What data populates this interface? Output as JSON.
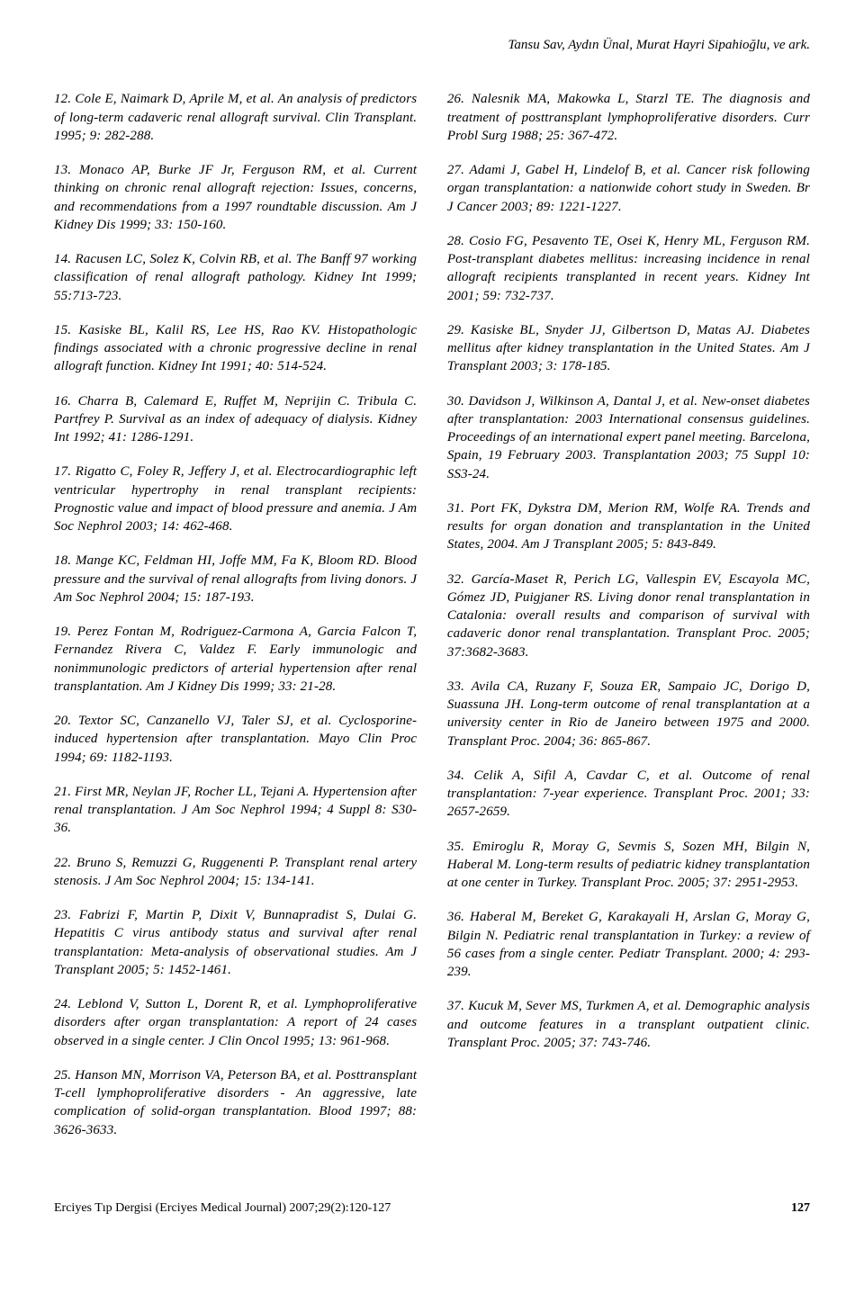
{
  "header": {
    "authors": "Tansu Sav, Aydın Ünal, Murat Hayri Sipahioğlu, ve ark."
  },
  "left_refs": [
    "12. Cole E, Naimark D, Aprile M, et al. An analysis of predictors of long-term cadaveric renal allograft survival. Clin Transplant. 1995; 9: 282-288.",
    "13. Monaco AP, Burke JF Jr, Ferguson RM, et al. Current thinking on chronic renal allograft rejection: Issues, concerns, and recommendations from a 1997 roundtable discussion. Am J Kidney Dis 1999; 33: 150-160.",
    "14. Racusen LC, Solez K, Colvin RB, et al. The Banff 97 working classification of renal allograft pathology. Kidney Int 1999; 55:713-723.",
    "15. Kasiske BL, Kalil RS, Lee HS, Rao KV. Histopathologic findings associated with a chronic progressive decline in renal allograft function. Kidney Int 1991; 40: 514-524.",
    "16. Charra B, Calemard E, Ruffet M, Neprijin C. Tribula C. Partfrey P. Survival as an index of adequacy of dialysis. Kidney Int 1992; 41: 1286-1291.",
    "17. Rigatto C, Foley R, Jeffery J, et al. Electrocardiographic left ventricular hypertrophy in renal transplant recipients: Prognostic value and impact of blood pressure and anemia. J Am Soc Nephrol 2003; 14: 462-468.",
    "18. Mange KC, Feldman HI, Joffe MM, Fa K, Bloom RD. Blood pressure and the survival of renal allografts from living donors. J Am Soc Nephrol 2004; 15: 187-193.",
    "19. Perez Fontan M, Rodriguez-Carmona A, Garcia Falcon T, Fernandez Rivera C, Valdez F. Early immunologic and nonimmunologic predictors of arterial hypertension after renal transplantation. Am J Kidney Dis 1999; 33: 21-28.",
    "20. Textor SC, Canzanello VJ, Taler SJ, et al. Cyclosporine-induced hypertension after transplantation. Mayo Clin Proc 1994; 69: 1182-1193.",
    "21. First MR, Neylan JF, Rocher LL, Tejani A. Hypertension after renal transplantation. J Am Soc Nephrol 1994; 4 Suppl 8: S30-36.",
    "22. Bruno S, Remuzzi G, Ruggenenti P. Transplant renal artery stenosis. J Am Soc Nephrol 2004; 15: 134-141.",
    "23. Fabrizi F, Martin P, Dixit V, Bunnapradist S, Dulai G. Hepatitis C virus antibody status and survival after renal transplantation: Meta-analysis of observational studies. Am J Transplant 2005; 5: 1452-1461.",
    "24. Leblond V, Sutton L, Dorent R, et al. Lymphoproliferative disorders after organ transplantation: A report of 24 cases observed in a single center. J Clin Oncol 1995; 13: 961-968.",
    "25. Hanson MN, Morrison VA, Peterson BA, et al. Posttransplant T-cell lymphoproliferative disorders - An aggressive, late complication of solid-organ transplantation. Blood 1997; 88: 3626-3633."
  ],
  "right_refs": [
    "26. Nalesnik MA, Makowka L, Starzl TE. The diagnosis and treatment of posttransplant lymphoproliferative disorders. Curr Probl Surg 1988; 25: 367-472.",
    "27. Adami J, Gabel H, Lindelof B, et al. Cancer risk following organ transplantation: a nationwide cohort study in Sweden. Br J Cancer 2003; 89: 1221-1227.",
    "28. Cosio FG, Pesavento TE, Osei K, Henry ML, Ferguson RM. Post-transplant diabetes mellitus: increasing incidence in renal allograft recipients transplanted in recent years. Kidney Int 2001; 59: 732-737.",
    "29. Kasiske BL, Snyder JJ, Gilbertson D, Matas AJ. Diabetes mellitus after kidney transplantation in the United States. Am J Transplant 2003; 3: 178-185.",
    "30. Davidson J, Wilkinson A, Dantal J, et al. New-onset diabetes after transplantation: 2003 International consensus guidelines. Proceedings of an international expert panel meeting. Barcelona, Spain, 19 February 2003. Transplantation 2003; 75 Suppl 10: SS3-24.",
    "31. Port FK, Dykstra DM, Merion RM, Wolfe RA. Trends and results for organ donation and transplantation in the United States, 2004. Am J Transplant 2005; 5: 843-849.",
    "32. García-Maset R, Perich LG, Vallespin EV, Escayola MC, Gómez JD, Puigjaner RS. Living donor renal transplantation in Catalonia: overall results and comparison of survival with cadaveric donor renal transplantation. Transplant Proc. 2005; 37:3682-3683.",
    "33. Avila CA, Ruzany F, Souza ER, Sampaio JC, Dorigo D, Suassuna JH. Long-term outcome of renal transplantation at a university center in Rio de Janeiro between 1975 and 2000. Transplant Proc. 2004; 36: 865-867.",
    "34. Celik A, Sifil A, Cavdar C, et al. Outcome of renal transplantation: 7-year experience. Transplant Proc. 2001; 33: 2657-2659.",
    "35. Emiroglu R, Moray G, Sevmis S, Sozen MH, Bilgin N, Haberal M. Long-term results of pediatric kidney transplantation at one center in Turkey. Transplant Proc. 2005; 37: 2951-2953.",
    "36. Haberal M, Bereket G, Karakayali H, Arslan G, Moray G, Bilgin N. Pediatric renal transplantation in Turkey: a review of 56 cases from a single center. Pediatr Transplant. 2000; 4: 293-239.",
    "37. Kucuk M, Sever MS, Turkmen A, et al. Demographic analysis and outcome features in a transplant outpatient clinic. Transplant Proc. 2005; 37: 743-746."
  ],
  "footer": {
    "journal": "Erciyes Tıp Dergisi (Erciyes Medical Journal) 2007;29(2):120-127",
    "page": "127"
  }
}
